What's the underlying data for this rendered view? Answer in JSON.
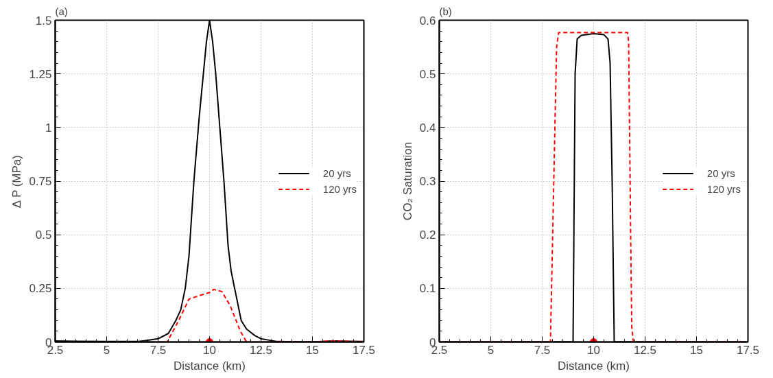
{
  "chart_data": [
    {
      "type": "line",
      "annotations": [
        "(a)"
      ],
      "xlabel": "Distance (km)",
      "ylabel": "Δ P (MPa)",
      "xlim": [
        2.5,
        17.5
      ],
      "xticks": [
        2.5,
        5,
        7.5,
        10,
        12.5,
        15,
        17.5
      ],
      "ylim": [
        0,
        1.5
      ],
      "yticks": [
        0,
        0.25,
        0.5,
        0.75,
        1,
        1.25,
        1.5
      ],
      "grid": true,
      "legend": "right",
      "series": [
        {
          "name": "20 yrs",
          "color": "#000000",
          "line_style": "solid",
          "x": [
            2.5,
            3.5,
            5,
            6.5,
            7,
            7.5,
            8,
            8.36,
            8.6,
            8.82,
            9,
            9.24,
            9.5,
            9.7,
            9.85,
            10,
            10.15,
            10.3,
            10.5,
            10.7,
            10.9,
            11.05,
            11.22,
            11.54,
            11.8,
            12.2,
            12.5,
            12.8,
            13.3,
            15,
            16,
            17.5
          ],
          "values": [
            0.005,
            0.003,
            0.002,
            0.002,
            0.008,
            0.015,
            0.04,
            0.1,
            0.15,
            0.25,
            0.4,
            0.75,
            1.05,
            1.25,
            1.4,
            1.5,
            1.4,
            1.25,
            1.0,
            0.75,
            0.45,
            0.33,
            0.25,
            0.1,
            0.06,
            0.03,
            0.015,
            0.01,
            0.002,
            0,
            0.005,
            0.002
          ]
        },
        {
          "name": "120 yrs",
          "color": "#ff0000",
          "line_style": "dashed",
          "x": [
            7.5,
            7.94,
            8.5,
            9,
            9.63,
            10,
            10.2,
            10.6,
            11,
            11.5,
            11.8,
            13,
            15,
            16,
            17.5
          ],
          "values": [
            0,
            0,
            0.1,
            0.2,
            0.22,
            0.23,
            0.245,
            0.235,
            0.17,
            0.05,
            0,
            0,
            0,
            0.005,
            0
          ]
        },
        {
          "type": "scatter",
          "color": "#ff0000",
          "marker": "circle",
          "x": [
            10
          ],
          "values": [
            0
          ]
        }
      ]
    },
    {
      "type": "line",
      "annotations": [
        "(b)"
      ],
      "xlabel": "Distance (km)",
      "ylabel": "CO₂ Saturation",
      "xlim": [
        2.5,
        17.5
      ],
      "xticks": [
        2.5,
        5,
        7.5,
        10,
        12.5,
        15,
        17.5
      ],
      "ylim": [
        0,
        0.6
      ],
      "yticks": [
        0,
        0.1,
        0.2,
        0.3,
        0.4,
        0.5,
        0.6
      ],
      "grid": true,
      "legend": "right",
      "series": [
        {
          "name": "20 yrs",
          "color": "#000000",
          "line_style": "solid",
          "x": [
            2.5,
            9.0,
            9.1,
            9.2,
            9.4,
            10,
            10.5,
            10.7,
            10.8,
            10.9,
            11.0,
            17.5
          ],
          "values": [
            0,
            0,
            0.5,
            0.565,
            0.572,
            0.575,
            0.573,
            0.565,
            0.52,
            0.3,
            0,
            0
          ]
        },
        {
          "name": "120 yrs",
          "color": "#ff0000",
          "line_style": "dashed",
          "x": [
            2.5,
            7.9,
            8.2,
            8.3,
            11.65,
            11.7,
            11.8,
            11.85,
            11.93,
            17.5
          ],
          "values": [
            0,
            0,
            0.55,
            0.577,
            0.577,
            0.56,
            0.2,
            0.03,
            0,
            0
          ]
        },
        {
          "type": "scatter",
          "color": "#ff0000",
          "marker": "circle",
          "x": [
            10
          ],
          "values": [
            0
          ]
        }
      ]
    }
  ]
}
